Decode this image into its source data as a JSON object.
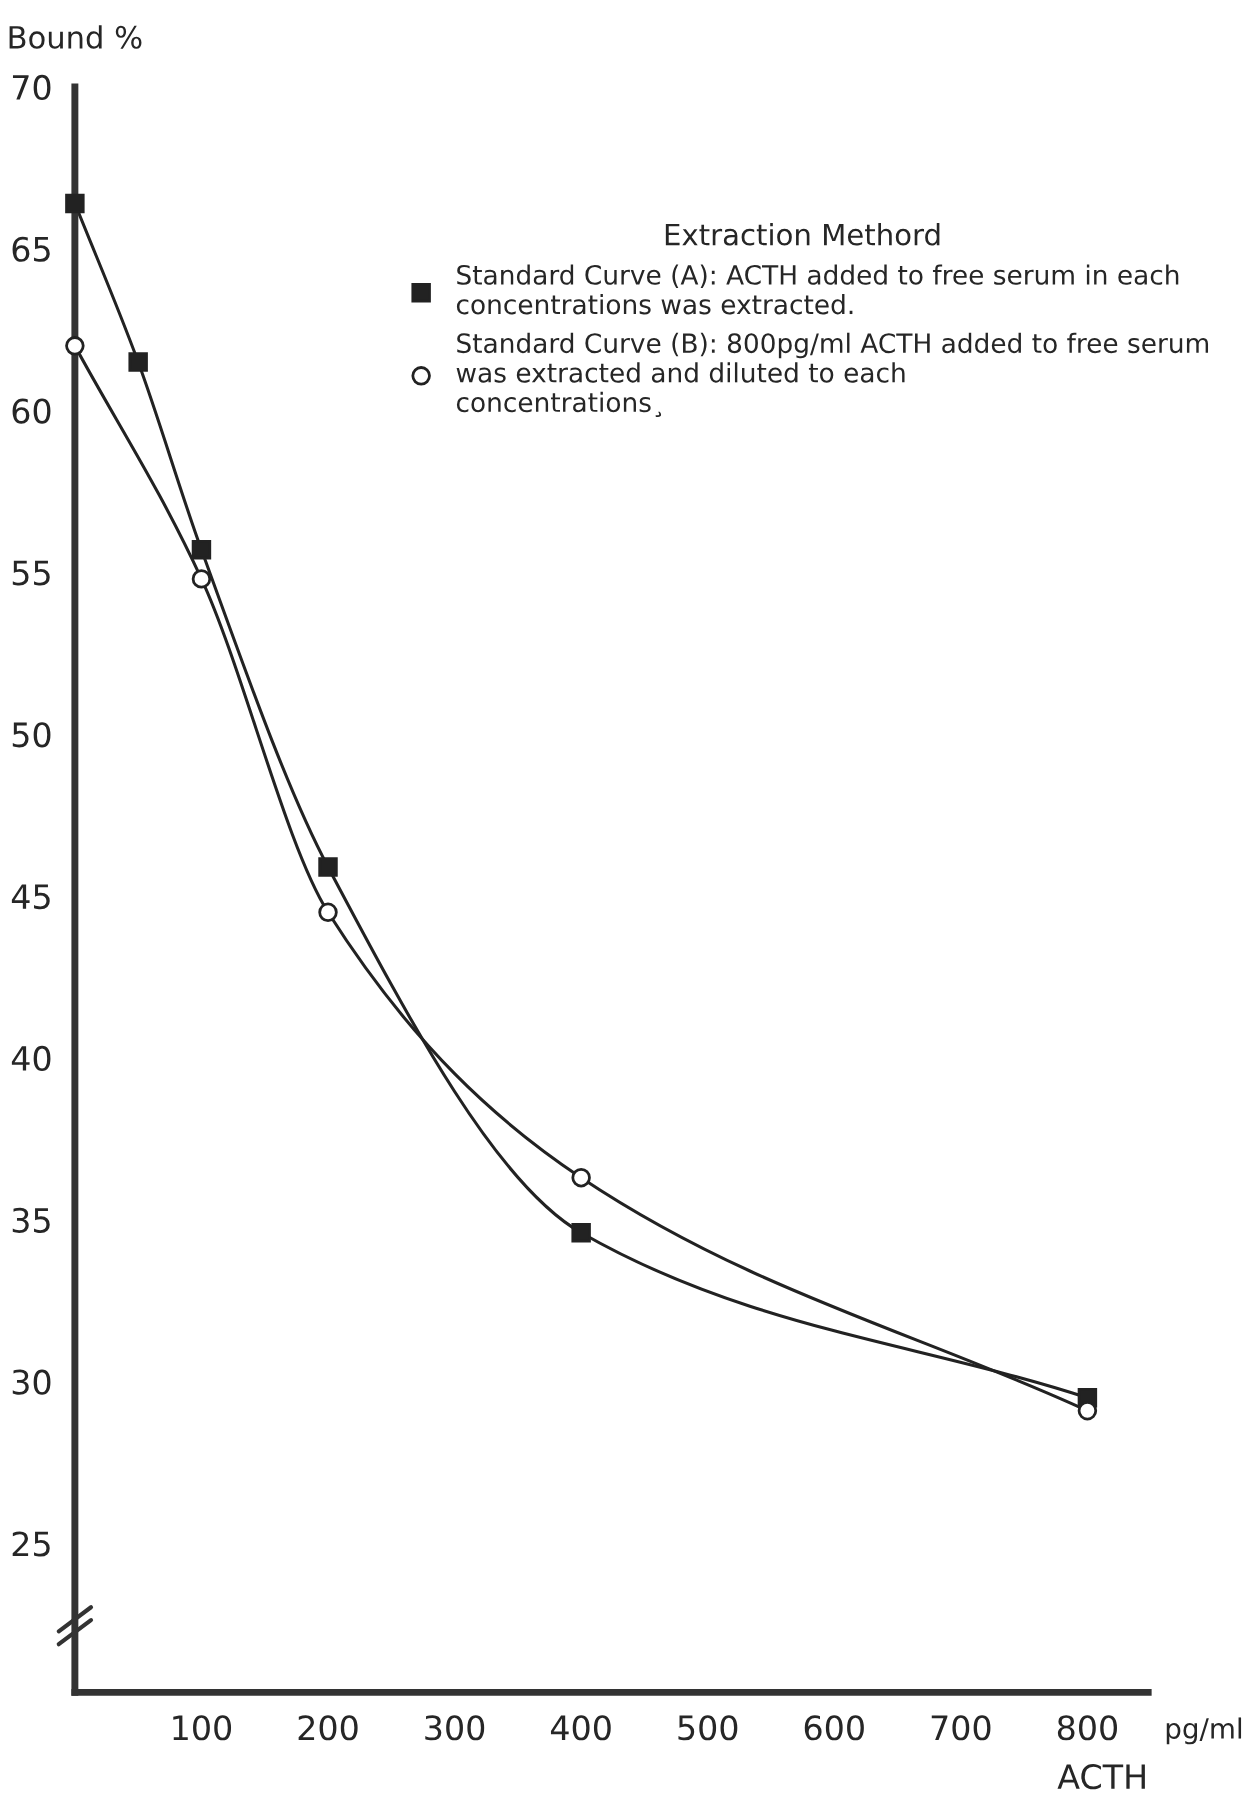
{
  "chart_data": {
    "type": "line",
    "ylabel": "Bound %",
    "xlabel": "ACTH",
    "legend_title": "Extraction Methord",
    "annotations": [
      "pg/ml"
    ],
    "series": [
      {
        "name": "Standard Curve (A): ACTH added to free serum in each\nconcentrations was extracted.",
        "color": "#222222",
        "marker": "square",
        "x": [
          0,
          50,
          100,
          200,
          400,
          800
        ],
        "values": [
          66.4,
          61.5,
          55.7,
          45.9,
          34.6,
          29.5
        ]
      },
      {
        "name": "Standard Curve (B): 800pg/ml ACTH added to free serum\nwas extracted and diluted to each\nconcentrations¸",
        "color": "#222222",
        "marker": "circle",
        "x": [
          0,
          100,
          200,
          400,
          800
        ],
        "values": [
          62.0,
          54.8,
          44.5,
          36.3,
          29.1
        ]
      }
    ],
    "xlim": [
      0,
      848
    ],
    "ylim": [
      20.4,
      70
    ],
    "xticks": [
      100,
      200,
      300,
      400,
      500,
      600,
      700,
      800
    ],
    "yticks": [
      25,
      30,
      35,
      40,
      45,
      50,
      55,
      60,
      65,
      70
    ],
    "grid": false,
    "legend": "top right",
    "line_style": "solid"
  }
}
